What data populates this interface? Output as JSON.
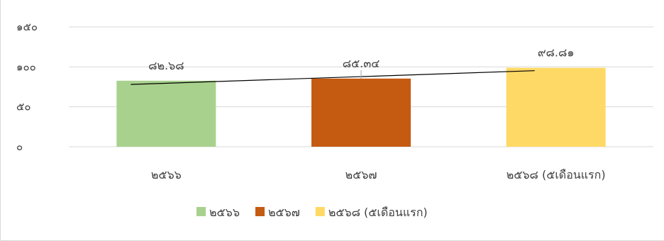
{
  "chart_data": {
    "type": "bar",
    "categories": [
      "๒๕๖๖",
      "๒๕๖๗",
      "๒๕๖๘ (๕เดือนแรก)"
    ],
    "values": [
      82.68,
      85.34,
      98.81
    ],
    "value_labels": [
      "๘๒.๖๘",
      "๘๕.๓๔",
      "๙๘.๘๑"
    ],
    "colors": [
      "#a9d18e",
      "#c55a11",
      "#ffd966"
    ],
    "ylim": [
      0,
      150
    ],
    "yticks": [
      0,
      50,
      100,
      150
    ],
    "ytick_labels": [
      "๐",
      "๕๐",
      "๑๐๐",
      "๑๕๐"
    ],
    "grid": true,
    "trendline": true,
    "legend_position": "bottom",
    "legend": [
      "๒๕๖๖",
      "๒๕๖๗",
      "๒๕๖๘ (๕เดือนแรก)"
    ]
  }
}
